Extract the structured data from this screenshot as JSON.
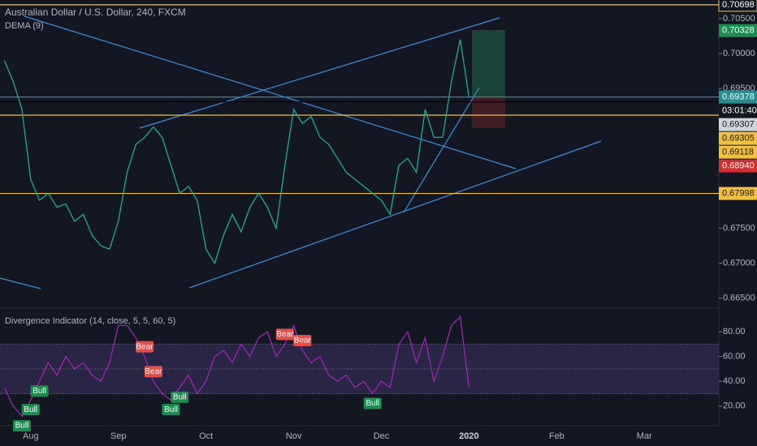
{
  "chart_data": [
    {
      "type": "line",
      "title": "Australian Dollar / U.S. Dollar, 240, FXCM",
      "subtitle": "DEMA (9)",
      "categories": [
        null,
        null,
        null,
        "Aug",
        null,
        null,
        null,
        null,
        null,
        null,
        null,
        null,
        null,
        "Sep",
        null,
        null,
        null,
        null,
        null,
        null,
        null,
        null,
        null,
        "Oct",
        null,
        null,
        null,
        null,
        null,
        null,
        null,
        null,
        null,
        "Nov",
        null,
        null,
        null,
        null,
        null,
        null,
        null,
        null,
        null,
        "Dec",
        null,
        null,
        null,
        null,
        null,
        null,
        null,
        null,
        null,
        "2020",
        null,
        null,
        null,
        null,
        null,
        null,
        null,
        null,
        null,
        "Feb",
        null,
        null,
        null,
        null,
        null,
        null,
        null,
        null,
        null,
        "Mar",
        null,
        null,
        null,
        null,
        null,
        null,
        null,
        null
      ],
      "color": "#26a69a",
      "values": [
        0.699,
        0.696,
        0.692,
        0.682,
        0.679,
        0.68,
        0.678,
        0.6785,
        0.676,
        0.677,
        0.674,
        0.6725,
        0.672,
        0.676,
        0.683,
        0.687,
        0.688,
        0.6895,
        0.688,
        0.684,
        0.68,
        0.681,
        0.679,
        0.672,
        0.67,
        0.674,
        0.677,
        0.6745,
        0.678,
        0.68,
        0.678,
        0.675,
        0.684,
        0.692,
        0.69,
        0.691,
        0.688,
        0.687,
        0.685,
        0.683,
        0.682,
        0.681,
        0.68,
        0.679,
        0.677,
        0.684,
        0.685,
        0.683,
        0.692,
        0.688,
        0.688,
        0.696,
        0.702,
        0.6938,
        null,
        null,
        null,
        null,
        null,
        null,
        null,
        null,
        null,
        null,
        null,
        null,
        null,
        null,
        null,
        null,
        null,
        null,
        null,
        null,
        null,
        null,
        null,
        null,
        null,
        null,
        null,
        null
      ],
      "ylim": [
        0.66357,
        0.70766
      ],
      "yticks": [
        {
          "value": 0.665,
          "label": "0.66500"
        },
        {
          "value": 0.67,
          "label": "0.67000"
        },
        {
          "value": 0.675,
          "label": "0.67500"
        },
        {
          "value": 0.695,
          "label": "0.69500"
        },
        {
          "value": 0.7,
          "label": "0.70000"
        },
        {
          "value": 0.705,
          "label": "0.70500"
        }
      ],
      "price_labels": [
        {
          "value": 0.70698,
          "color": "#131722",
          "line": "#f0c040"
        },
        {
          "value": 0.70328,
          "color": "#1e8c4f"
        },
        {
          "value": 0.69378,
          "color": "#2a8c8c",
          "line": "#2a8c8c"
        },
        {
          "label": "03:01:40",
          "color": "#131722"
        },
        {
          "value": 0.69307,
          "color": "#d1d4dc",
          "line": "#050505"
        },
        {
          "value": 0.69305,
          "color": "#f0c040"
        },
        {
          "value": 0.69118,
          "color": "#f0c040",
          "line": "#f0c040"
        },
        {
          "value": 0.6894,
          "label": "0.68940",
          "color": "#d32f2f"
        },
        {
          "value": 0.67998,
          "color": "#f0c040",
          "line": "#f0c040"
        }
      ]
    },
    {
      "type": "line",
      "title": "Divergence Indicator (14, close, 5, 5, 60, 5)",
      "color": "#9c27b0",
      "values": [
        35,
        20,
        12,
        25,
        40,
        55,
        45,
        60,
        50,
        55,
        45,
        40,
        55,
        85,
        85,
        75,
        60,
        40,
        30,
        25,
        35,
        45,
        30,
        40,
        60,
        65,
        55,
        70,
        60,
        75,
        80,
        60,
        70,
        85,
        65,
        55,
        60,
        45,
        40,
        45,
        35,
        40,
        30,
        40,
        35,
        70,
        80,
        55,
        75,
        40,
        60,
        85,
        92,
        35,
        null,
        null,
        null,
        null,
        null,
        null,
        null,
        null,
        null,
        null,
        null,
        null,
        null,
        null,
        null,
        null,
        null,
        null,
        null,
        null,
        null,
        null,
        null,
        null,
        null,
        null,
        null,
        null
      ],
      "ylim": [
        4.2,
        99
      ],
      "yticks": [
        {
          "value": 20,
          "label": "20.00"
        },
        {
          "value": 40,
          "label": "40.00"
        },
        {
          "value": 60,
          "label": "60.00"
        },
        {
          "value": 80,
          "label": "80.00"
        }
      ],
      "bands": [
        30,
        50,
        70
      ],
      "signals": [
        {
          "label": "Bull",
          "at": 2,
          "color": "#1e8c4f"
        },
        {
          "label": "Bull",
          "at": 3,
          "color": "#1e8c4f"
        },
        {
          "label": "Bull",
          "at": 4,
          "color": "#1e8c4f"
        },
        {
          "label": "Bear",
          "at": 16,
          "color": "#e0504a"
        },
        {
          "label": "Bear",
          "at": 17,
          "color": "#e0504a"
        },
        {
          "label": "Bull",
          "at": 19,
          "color": "#1e8c4f"
        },
        {
          "label": "Bull",
          "at": 20,
          "color": "#1e8c4f"
        },
        {
          "label": "Bear",
          "at": 32,
          "color": "#e0504a"
        },
        {
          "label": "Bear",
          "at": 34,
          "color": "#e0504a"
        },
        {
          "label": "Bull",
          "at": 42,
          "color": "#1e8c4f"
        }
      ]
    }
  ]
}
